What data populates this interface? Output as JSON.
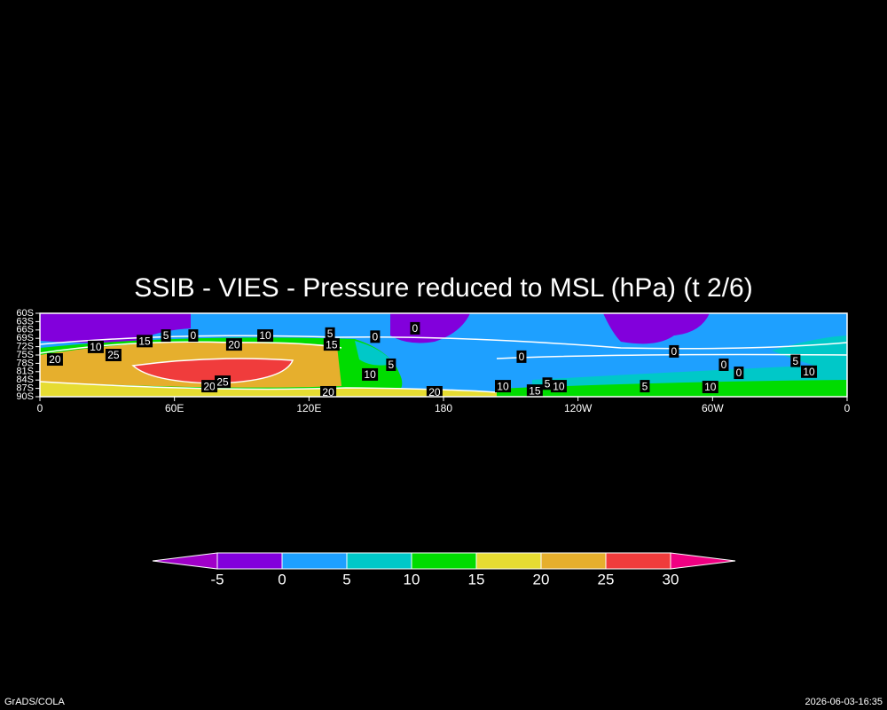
{
  "chart_data": {
    "type": "contour",
    "title": "SSIB - VIES - Pressure reduced to MSL (hPa) (t 2/6)",
    "xlim": [
      0,
      360
    ],
    "xticks": [
      0,
      {
        "value": 60,
        "label": "60E"
      },
      {
        "value": 120,
        "label": "120E"
      },
      180,
      {
        "value": 240,
        "label": "120W"
      },
      {
        "value": 300,
        "label": "60W"
      },
      {
        "value": 360,
        "label": "0"
      }
    ],
    "ylim": [
      -90,
      -60
    ],
    "yticks": [
      {
        "value": -60,
        "label": "60S"
      },
      {
        "value": -63,
        "label": "63S"
      },
      {
        "value": -66,
        "label": "66S"
      },
      {
        "value": -69,
        "label": "69S"
      },
      {
        "value": -72,
        "label": "72S"
      },
      {
        "value": -75,
        "label": "75S"
      },
      {
        "value": -78,
        "label": "78S"
      },
      {
        "value": -81,
        "label": "81S"
      },
      {
        "value": -84,
        "label": "84S"
      },
      {
        "value": -87,
        "label": "87S"
      },
      {
        "value": -90,
        "label": "90S"
      }
    ],
    "levels": [
      -5,
      0,
      5,
      10,
      15,
      20,
      25,
      30
    ],
    "colors": [
      "#a000c8",
      "#8200dc",
      "#1ea0ff",
      "#00c8c8",
      "#00dc00",
      "#e6dc32",
      "#e6af2d",
      "#f03c3c",
      "#f00082"
    ],
    "contour_labels": [
      {
        "value": 0,
        "x": 167.3,
        "y": -65.4
      },
      {
        "value": 5,
        "x": 56.2,
        "y": -68
      },
      {
        "value": 0,
        "x": 68.4,
        "y": -68
      },
      {
        "value": 15,
        "x": 46.7,
        "y": -70
      },
      {
        "value": 10,
        "x": 100.5,
        "y": -68
      },
      {
        "value": 5,
        "x": 129.4,
        "y": -67.3
      },
      {
        "value": 15,
        "x": 130.1,
        "y": -71.2
      },
      {
        "value": 0,
        "x": 149.5,
        "y": -68.4
      },
      {
        "value": 20,
        "x": 86.6,
        "y": -71.2
      },
      {
        "value": 10,
        "x": 24.9,
        "y": -72.1
      },
      {
        "value": 25,
        "x": 32.8,
        "y": -75
      },
      {
        "value": 20,
        "x": 6.7,
        "y": -76.6
      },
      {
        "value": 5,
        "x": 156.6,
        "y": -78.5
      },
      {
        "value": 10,
        "x": 147.2,
        "y": -82
      },
      {
        "value": 0,
        "x": 214.8,
        "y": -75.6
      },
      {
        "value": 0,
        "x": 282.8,
        "y": -73.7
      },
      {
        "value": 0,
        "x": 305,
        "y": -78.5
      },
      {
        "value": 0,
        "x": 311.7,
        "y": -81.4
      },
      {
        "value": 5,
        "x": 337,
        "y": -77.1
      },
      {
        "value": 10,
        "x": 343,
        "y": -81
      },
      {
        "value": 20,
        "x": 75.6,
        "y": -86.2
      },
      {
        "value": 25,
        "x": 81.5,
        "y": -84.6
      },
      {
        "value": 20,
        "x": 128.6,
        "y": -88.4
      },
      {
        "value": 20,
        "x": 176,
        "y": -88.4
      },
      {
        "value": 10,
        "x": 206.5,
        "y": -86.2
      },
      {
        "value": 15,
        "x": 220.7,
        "y": -87.8
      },
      {
        "value": 5,
        "x": 226.3,
        "y": -85.3
      },
      {
        "value": 10,
        "x": 231.4,
        "y": -86.2
      },
      {
        "value": 5,
        "x": 269.8,
        "y": -86.2
      },
      {
        "value": 10,
        "x": 299,
        "y": -86.5
      }
    ],
    "footer_left": "GrADS/COLA",
    "footer_right": "2026-06-03-16:35"
  }
}
